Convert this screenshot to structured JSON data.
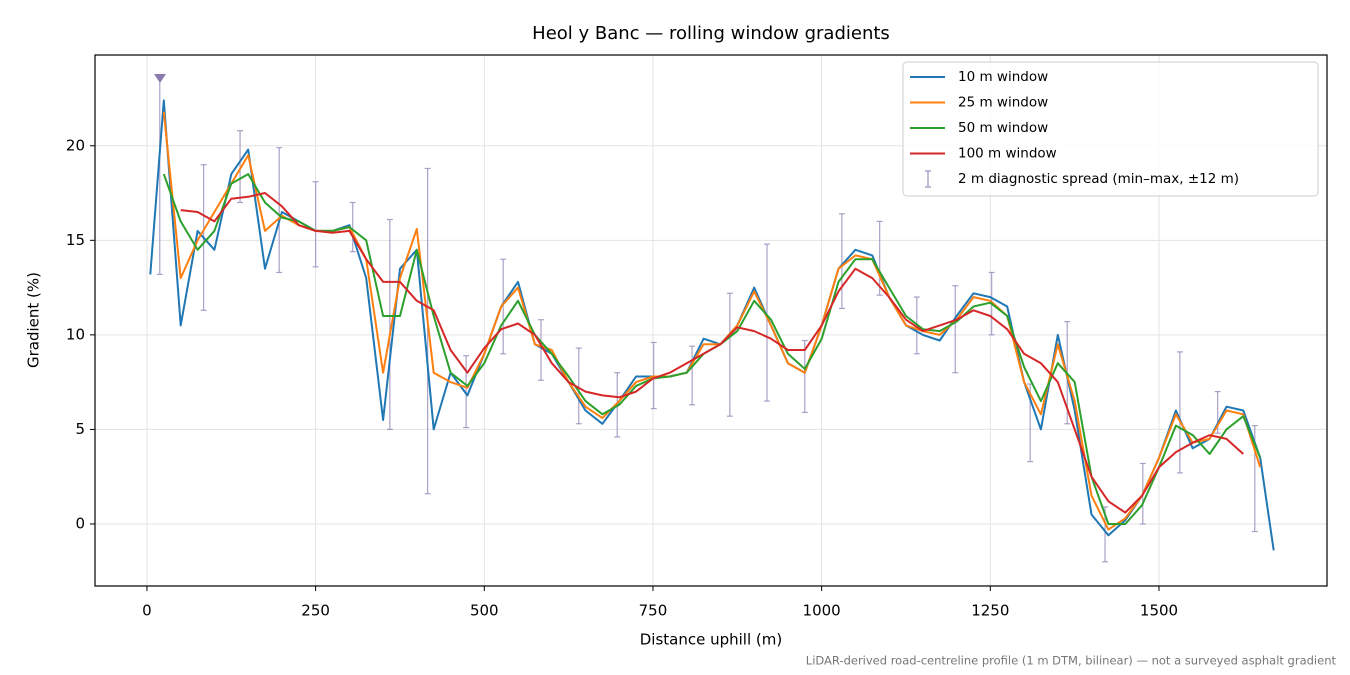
{
  "chart_data": {
    "type": "line",
    "title": "Heol y Banc — rolling window gradients",
    "xlabel": "Distance uphill (m)",
    "ylabel": "Gradient (%)",
    "footnote": "LiDAR-derived road-centreline profile (1 m DTM, bilinear) — not a surveyed asphalt gradient",
    "xlim": [
      -77,
      1749
    ],
    "ylim": [
      -3.28,
      24.8
    ],
    "xticks": [
      0,
      250,
      500,
      750,
      1000,
      1250,
      1500
    ],
    "yticks": [
      0,
      5,
      10,
      15,
      20
    ],
    "grid": true,
    "legend": "upper right",
    "x": [
      5,
      25,
      50,
      75,
      100,
      125,
      150,
      175,
      200,
      225,
      250,
      275,
      300,
      325,
      350,
      375,
      400,
      425,
      450,
      475,
      500,
      525,
      550,
      575,
      600,
      625,
      650,
      675,
      700,
      725,
      750,
      775,
      800,
      825,
      850,
      875,
      900,
      925,
      950,
      975,
      1000,
      1025,
      1050,
      1075,
      1100,
      1125,
      1150,
      1175,
      1200,
      1225,
      1250,
      1275,
      1300,
      1325,
      1350,
      1375,
      1400,
      1425,
      1450,
      1475,
      1500,
      1525,
      1550,
      1575,
      1600,
      1625,
      1650,
      1670
    ],
    "series": [
      {
        "name": "10 m window",
        "color": "#1f77b4",
        "values": [
          13.2,
          22.4,
          10.5,
          15.5,
          14.5,
          18.5,
          19.8,
          13.5,
          16.5,
          16,
          15.5,
          15.5,
          15.8,
          13,
          5.5,
          13.5,
          14.5,
          5,
          8,
          6.8,
          9,
          11.5,
          12.8,
          9.5,
          9,
          7.5,
          6,
          5.3,
          6.5,
          7.8,
          7.8,
          7.8,
          8,
          9.8,
          9.5,
          10.5,
          12.5,
          10.5,
          8.5,
          8,
          10.5,
          13.5,
          14.5,
          14.2,
          12,
          10.5,
          10,
          9.7,
          11,
          12.2,
          12,
          11.5,
          7.5,
          5,
          10,
          6,
          0.5,
          -0.6,
          0.2,
          1.5,
          3.5,
          6,
          4,
          4.5,
          6.2,
          6,
          3.5,
          -1.4
        ]
      },
      {
        "name": "25 m window",
        "color": "#ff7f0e",
        "values": [
          null,
          21.8,
          13,
          15,
          16.5,
          18,
          19.5,
          15.5,
          16.3,
          15.8,
          15.5,
          15.5,
          15.7,
          14,
          8,
          13,
          15.6,
          8,
          7.5,
          7.2,
          9,
          11.5,
          12.5,
          9.5,
          9.2,
          7.5,
          6.2,
          5.6,
          6.5,
          7.5,
          7.8,
          7.8,
          8,
          9.5,
          9.5,
          10.5,
          12.3,
          10.5,
          8.5,
          8,
          10.5,
          13.5,
          14.2,
          14,
          12,
          10.5,
          10.2,
          10,
          10.8,
          12,
          11.8,
          11,
          7.5,
          5.8,
          9.5,
          6.5,
          1.5,
          -0.3,
          0.3,
          1.5,
          3.5,
          5.8,
          4.3,
          4.5,
          6,
          5.8,
          3,
          null
        ]
      },
      {
        "name": "50 m window",
        "color": "#2ca02c",
        "values": [
          null,
          18.5,
          16,
          14.5,
          15.5,
          18,
          18.5,
          17,
          16.2,
          16,
          15.5,
          15.5,
          15.7,
          15,
          11,
          11,
          14.5,
          11,
          8,
          7.3,
          8.5,
          10.5,
          11.8,
          10,
          9,
          7.8,
          6.5,
          5.8,
          6.3,
          7.3,
          7.7,
          7.8,
          8,
          9,
          9.5,
          10.2,
          11.8,
          10.8,
          9,
          8.2,
          9.8,
          12.8,
          14,
          14,
          12.5,
          11,
          10.3,
          10.2,
          10.7,
          11.5,
          11.7,
          11,
          8.3,
          6.5,
          8.5,
          7.5,
          2.5,
          0,
          0,
          1,
          3,
          5.2,
          4.7,
          3.7,
          5,
          5.7,
          3.5,
          null
        ]
      },
      {
        "name": "100 m window",
        "color": "#d62728",
        "values": [
          null,
          null,
          16.6,
          16.5,
          16,
          17.2,
          17.3,
          17.5,
          16.8,
          15.8,
          15.5,
          15.4,
          15.5,
          14,
          12.8,
          12.8,
          11.8,
          11.3,
          9.2,
          8,
          9.3,
          10.3,
          10.6,
          10,
          8.5,
          7.5,
          7,
          6.8,
          6.7,
          7,
          7.7,
          8,
          8.5,
          9,
          9.5,
          10.4,
          10.2,
          9.8,
          9.2,
          9.2,
          10.5,
          12.3,
          13.5,
          13,
          12,
          10.8,
          10.2,
          10.5,
          10.8,
          11.3,
          11,
          10.3,
          9,
          8.5,
          7.5,
          5,
          2.5,
          1.2,
          0.6,
          1.5,
          3,
          3.8,
          4.3,
          4.7,
          4.5,
          3.7,
          null,
          null
        ]
      }
    ],
    "spread": {
      "name": "2 m diagnostic spread (min–max, ±12 m)",
      "color": "#9d8fbd",
      "x": [
        19,
        84,
        138,
        196,
        250,
        305,
        360,
        416,
        473,
        528,
        584,
        640,
        697,
        751,
        808,
        864,
        919,
        975,
        1030,
        1086,
        1141,
        1198,
        1252,
        1309,
        1364,
        1420,
        1476,
        1531,
        1587,
        1642
      ],
      "low": [
        13.2,
        11.3,
        17,
        13.3,
        13.6,
        14.4,
        5,
        1.6,
        5.1,
        9,
        7.6,
        5.3,
        4.6,
        6.1,
        6.3,
        5.7,
        6.5,
        5.9,
        11.4,
        12.1,
        9,
        8,
        10,
        3.3,
        5.3,
        -2,
        0,
        2.7,
        4.8,
        -0.4
      ],
      "high": [
        23.6,
        19,
        20.8,
        19.9,
        18.1,
        17,
        16.1,
        18.8,
        8.9,
        14,
        10.8,
        9.3,
        8,
        9.6,
        9.4,
        12.2,
        14.8,
        9.7,
        16.4,
        16,
        12,
        12.6,
        13.3,
        7.4,
        10.7,
        0.9,
        3.2,
        9.1,
        7,
        5.2
      ]
    }
  }
}
